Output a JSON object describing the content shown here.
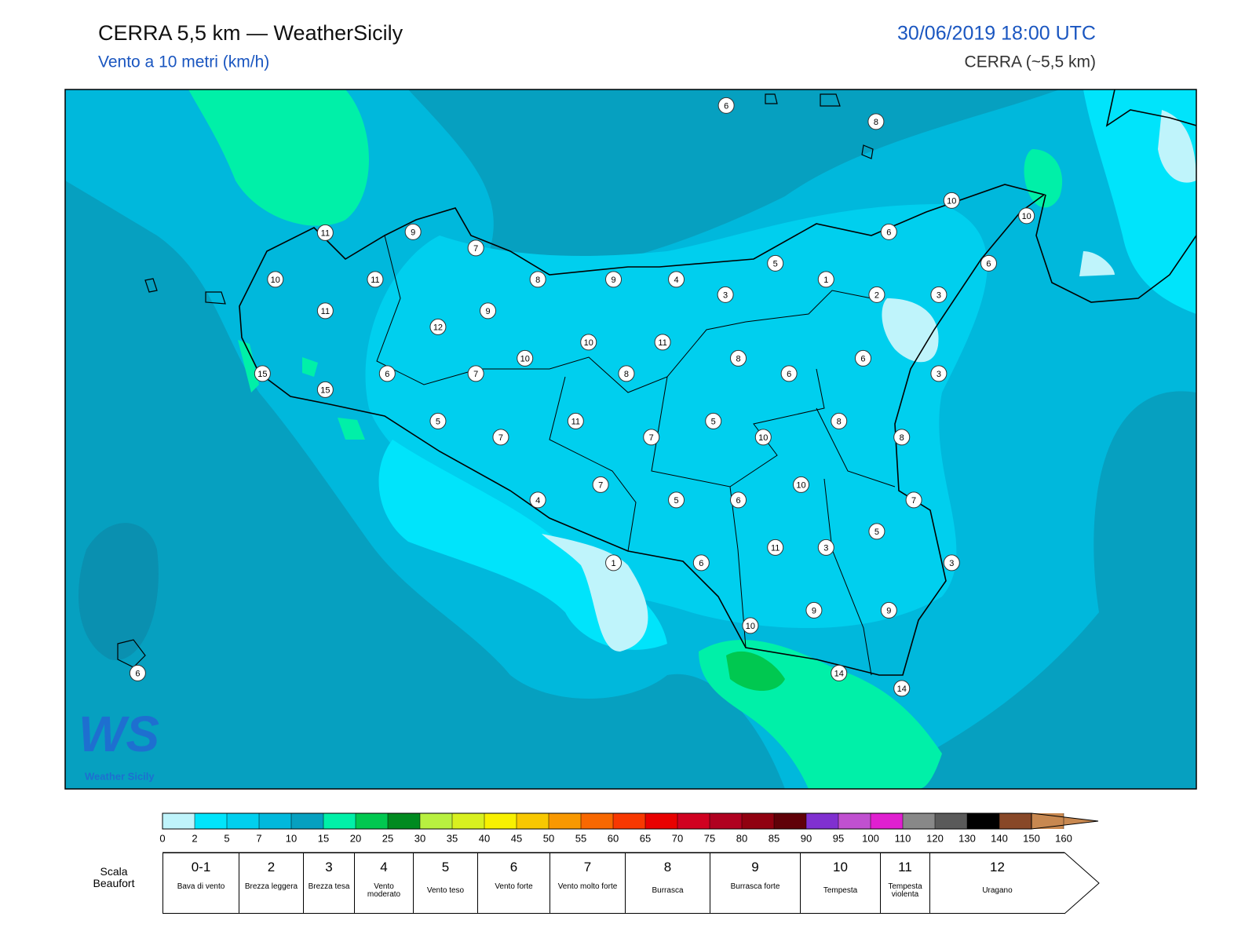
{
  "header": {
    "title": "CERRA 5,5 km — WeatherSicily",
    "subtitle": "Vento a 10 metri (km/h)",
    "datetime": "30/06/2019 18:00 UTC",
    "model": "CERRA (~5,5 km)"
  },
  "map": {
    "stations": [
      6,
      8,
      10,
      10,
      6,
      11,
      9,
      7,
      5,
      6,
      10,
      11,
      8,
      9,
      4,
      1,
      3,
      2,
      3,
      11,
      9,
      12,
      10,
      11,
      10,
      8,
      6,
      15,
      6,
      7,
      8,
      6,
      3,
      15,
      5,
      11,
      5,
      8,
      7,
      7,
      10,
      8,
      10,
      7,
      4,
      5,
      6,
      7,
      5,
      11,
      3,
      3,
      1,
      6,
      9,
      9,
      10,
      6,
      14,
      14
    ]
  },
  "logo": "Weather Sicily",
  "colorbar": {
    "ticks": [
      0,
      2,
      5,
      7,
      10,
      15,
      20,
      25,
      30,
      35,
      40,
      45,
      50,
      55,
      60,
      65,
      70,
      75,
      80,
      85,
      90,
      95,
      100,
      110,
      120,
      130,
      140,
      150,
      160
    ],
    "colors": [
      "#bff4fb",
      "#00e4fb",
      "#00cfee",
      "#00b8dc",
      "#06a0c0",
      "#00f0a8",
      "#00c850",
      "#008a20",
      "#b8f040",
      "#d8f020",
      "#f8f000",
      "#f8c800",
      "#f89800",
      "#f86800",
      "#f83800",
      "#e80000",
      "#d00020",
      "#b00020",
      "#900010",
      "#600008",
      "#8030d0",
      "#c050d0",
      "#e020d0",
      "#888888",
      "#5a5a5a",
      "#000000",
      "#884828",
      "#c88850"
    ]
  },
  "beaufort": {
    "label": "Scala Beaufort",
    "classes": [
      {
        "force": "0-1",
        "name": "Bava di vento"
      },
      {
        "force": "2",
        "name": "Brezza leggera"
      },
      {
        "force": "3",
        "name": "Brezza tesa"
      },
      {
        "force": "4",
        "name": "Vento moderato"
      },
      {
        "force": "5",
        "name": "Vento teso"
      },
      {
        "force": "6",
        "name": "Vento forte"
      },
      {
        "force": "7",
        "name": "Vento molto forte"
      },
      {
        "force": "8",
        "name": "Burrasca"
      },
      {
        "force": "9",
        "name": "Burrasca forte"
      },
      {
        "force": "10",
        "name": "Tempesta"
      },
      {
        "force": "11",
        "name": "Tempesta violenta"
      },
      {
        "force": "12",
        "name": "Uragano"
      }
    ]
  }
}
